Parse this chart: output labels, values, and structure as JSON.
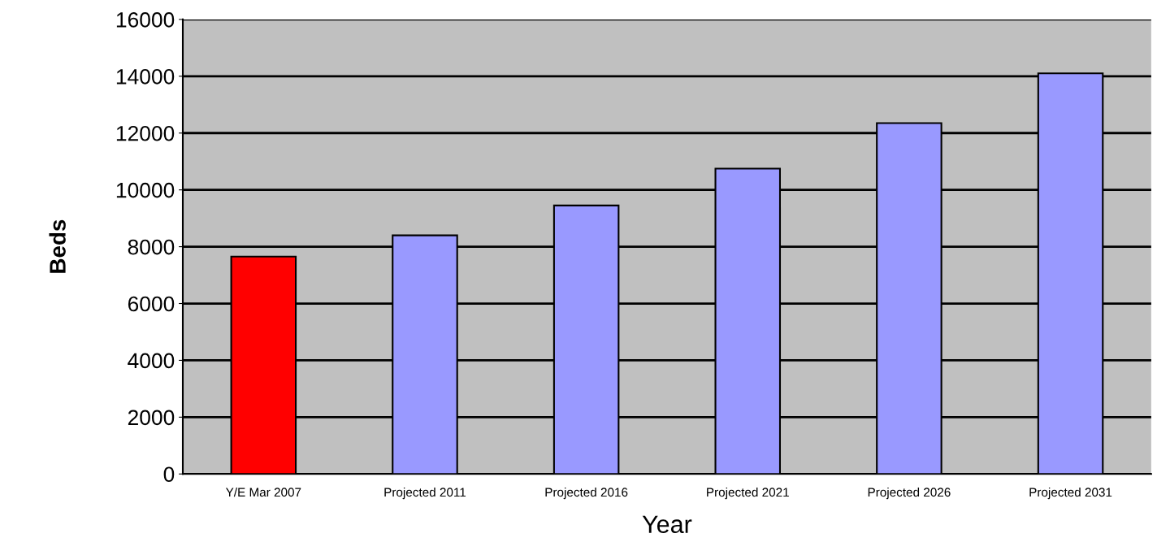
{
  "chart_data": {
    "type": "bar",
    "xlabel": "Year",
    "ylabel": "Beds",
    "categories": [
      "Y/E Mar 2007",
      "Projected 2011",
      "Projected 2016",
      "Projected 2021",
      "Projected 2026",
      "Projected 2031"
    ],
    "values": [
      7650,
      8400,
      9450,
      10750,
      12350,
      14100
    ],
    "colors": [
      "#ff0000",
      "#9999ff",
      "#9999ff",
      "#9999ff",
      "#9999ff",
      "#9999ff"
    ],
    "ylim": [
      0,
      16000
    ],
    "yticks": [
      0,
      2000,
      4000,
      6000,
      8000,
      10000,
      12000,
      14000,
      16000
    ],
    "grid": "y",
    "legend": false
  }
}
